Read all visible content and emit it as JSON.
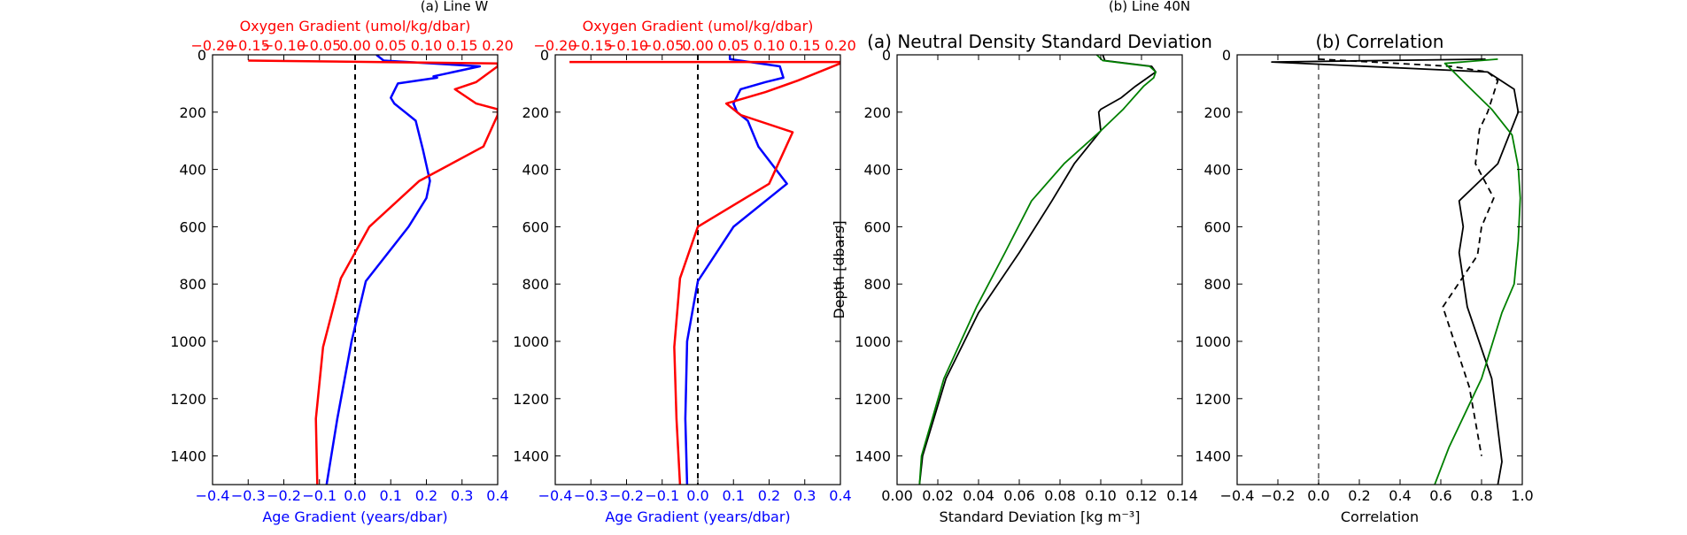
{
  "figure": {
    "suptitles": [
      "(a) Line W",
      "(b) Line 40N"
    ]
  },
  "chart_data": [
    {
      "type": "line",
      "panel": "Line W",
      "title": "",
      "xlabel": "Age Gradient (years/dbar)",
      "xlabel_color": "#0000ff",
      "xlim": [
        -0.4,
        0.4
      ],
      "xticks": [
        "−0.4",
        "−0.3",
        "−0.2",
        "−0.1",
        "0.0",
        "0.1",
        "0.2",
        "0.3",
        "0.4"
      ],
      "xticks_vals": [
        -0.4,
        -0.3,
        -0.2,
        -0.1,
        0.0,
        0.1,
        0.2,
        0.3,
        0.4
      ],
      "top_xlabel": "Oxygen Gradient (umol/kg/dbar)",
      "top_xlabel_color": "#ff0000",
      "top_xlim": [
        -0.2,
        0.2
      ],
      "top_xticks": [
        "−0.20",
        "−0.15",
        "−0.10",
        "−0.05",
        "0.00",
        "0.05",
        "0.10",
        "0.15",
        "0.20"
      ],
      "top_xticks_vals": [
        -0.2,
        -0.15,
        -0.1,
        -0.05,
        0.0,
        0.05,
        0.1,
        0.15,
        0.2
      ],
      "ylabel": "",
      "ylim": [
        0,
        1500
      ],
      "yticks": [
        "0",
        "200",
        "400",
        "600",
        "800",
        "1000",
        "1200",
        "1400"
      ],
      "yticks_vals": [
        0,
        200,
        400,
        600,
        800,
        1000,
        1200,
        1400
      ],
      "y_inverted": true,
      "series": [
        {
          "color": "#0000ff",
          "axis": "bottom",
          "x": [
            0.06,
            0.08,
            0.35,
            0.22,
            0.23,
            0.12,
            0.1,
            0.11,
            0.14,
            0.17,
            0.19,
            0.21,
            0.2,
            0.15,
            0.03,
            -0.01,
            -0.05,
            -0.08
          ],
          "y": [
            0,
            20,
            40,
            75,
            80,
            100,
            150,
            170,
            200,
            230,
            330,
            440,
            500,
            600,
            790,
            1000,
            1270,
            1500
          ]
        },
        {
          "color": "#ff0000",
          "axis": "top",
          "x": [
            -0.15,
            0.2,
            0.2,
            0.17,
            0.14,
            0.17,
            0.2,
            0.2,
            0.18,
            0.09,
            0.02,
            -0.02,
            -0.045,
            -0.055,
            -0.053
          ],
          "y": [
            20,
            30,
            40,
            95,
            120,
            170,
            190,
            210,
            320,
            440,
            600,
            780,
            1020,
            1270,
            1500
          ]
        }
      ],
      "reference_line": {
        "x": 0,
        "style": "dashed",
        "color": "#000000"
      }
    },
    {
      "type": "line",
      "panel": "Line 40N",
      "title": "",
      "xlabel": "Age Gradient (years/dbar)",
      "xlabel_color": "#0000ff",
      "xlim": [
        -0.4,
        0.4
      ],
      "xticks": [
        "−0.4",
        "−0.3",
        "−0.2",
        "−0.1",
        "0.0",
        "0.1",
        "0.2",
        "0.3",
        "0.4"
      ],
      "xticks_vals": [
        -0.4,
        -0.3,
        -0.2,
        -0.1,
        0.0,
        0.1,
        0.2,
        0.3,
        0.4
      ],
      "top_xlabel": "Oxygen Gradient (umol/kg/dbar)",
      "top_xlabel_color": "#ff0000",
      "top_xlim": [
        -0.2,
        0.2
      ],
      "top_xticks": [
        "−0.20",
        "−0.15",
        "−0.10",
        "−0.05",
        "0.00",
        "0.05",
        "0.10",
        "0.15",
        "0.20"
      ],
      "top_xticks_vals": [
        -0.2,
        -0.15,
        -0.1,
        -0.05,
        0.0,
        0.05,
        0.1,
        0.15,
        0.2
      ],
      "ylabel": "",
      "ylim": [
        0,
        1500
      ],
      "yticks": [
        "0",
        "200",
        "400",
        "600",
        "800",
        "1000",
        "1200",
        "1400"
      ],
      "yticks_vals": [
        0,
        200,
        400,
        600,
        800,
        1000,
        1200,
        1400
      ],
      "y_inverted": true,
      "series": [
        {
          "color": "#0000ff",
          "axis": "bottom",
          "x": [
            0.09,
            0.09,
            0.23,
            0.24,
            0.19,
            0.12,
            0.1,
            0.11,
            0.14,
            0.17,
            0.25,
            0.1,
            0.0,
            -0.03,
            -0.035,
            -0.03
          ],
          "y": [
            0,
            15,
            40,
            80,
            95,
            120,
            170,
            200,
            230,
            320,
            450,
            600,
            790,
            1000,
            1270,
            1500
          ]
        },
        {
          "color": "#ff0000",
          "axis": "top",
          "x": [
            -0.18,
            0.2,
            0.2,
            0.14,
            0.095,
            0.04,
            0.06,
            0.133,
            0.1,
            0.0,
            -0.025,
            -0.033,
            -0.03,
            -0.025
          ],
          "y": [
            25,
            25,
            30,
            90,
            130,
            170,
            210,
            270,
            450,
            600,
            780,
            1020,
            1270,
            1500
          ]
        }
      ],
      "reference_line": {
        "x": 0,
        "style": "dashed",
        "color": "#000000"
      }
    },
    {
      "type": "line",
      "panel": "(a)",
      "title": "(a) Neutral Density Standard Deviation",
      "xlabel": "Standard Deviation [kg m⁻³]",
      "xlim": [
        0.0,
        0.14
      ],
      "xticks": [
        "0.00",
        "0.02",
        "0.04",
        "0.06",
        "0.08",
        "0.10",
        "0.12",
        "0.14"
      ],
      "xticks_vals": [
        0.0,
        0.02,
        0.04,
        0.06,
        0.08,
        0.1,
        0.12,
        0.14
      ],
      "ylabel": "Depth [dbars]",
      "ylim": [
        0,
        1500
      ],
      "yticks": [
        "0",
        "200",
        "400",
        "600",
        "800",
        "1000",
        "1200",
        "1400"
      ],
      "yticks_vals": [
        0,
        200,
        400,
        600,
        800,
        1000,
        1200,
        1400
      ],
      "y_inverted": true,
      "series": [
        {
          "color": "#000000",
          "x": [
            0.101,
            0.102,
            0.125,
            0.127,
            0.123,
            0.117,
            0.11,
            0.1,
            0.099,
            0.1,
            0.087,
            0.076,
            0.06,
            0.04,
            0.024,
            0.0125,
            0.011
          ],
          "y": [
            0,
            20,
            40,
            60,
            80,
            110,
            150,
            190,
            200,
            265,
            380,
            510,
            690,
            900,
            1130,
            1400,
            1500
          ]
        },
        {
          "color": "#008000",
          "x": [
            0.098,
            0.101,
            0.124,
            0.127,
            0.126,
            0.121,
            0.111,
            0.1,
            0.082,
            0.066,
            0.053,
            0.039,
            0.023,
            0.012,
            0.011
          ],
          "y": [
            0,
            20,
            40,
            60,
            80,
            110,
            190,
            265,
            380,
            510,
            690,
            880,
            1130,
            1400,
            1500
          ]
        }
      ]
    },
    {
      "type": "line",
      "panel": "(b)",
      "title": "(b) Correlation",
      "xlabel": "Correlation",
      "xlim": [
        -0.4,
        1.0
      ],
      "xticks": [
        "−0.4",
        "−0.2",
        "0.0",
        "0.2",
        "0.4",
        "0.6",
        "0.8",
        "1.0"
      ],
      "xticks_vals": [
        -0.4,
        -0.2,
        0.0,
        0.2,
        0.4,
        0.6,
        0.8,
        1.0
      ],
      "ylabel": "",
      "ylim": [
        0,
        1500
      ],
      "yticks": [
        "0",
        "200",
        "400",
        "600",
        "800",
        "1000",
        "1200",
        "1400"
      ],
      "yticks_vals": [
        0,
        200,
        400,
        600,
        800,
        1000,
        1200,
        1400
      ],
      "y_inverted": true,
      "series": [
        {
          "color": "#000000",
          "style": "solid",
          "x": [
            0.82,
            -0.23,
            0.83,
            0.96,
            0.98,
            0.88,
            0.69,
            0.71,
            0.69,
            0.73,
            0.85,
            0.9,
            0.88
          ],
          "y": [
            15,
            25,
            60,
            120,
            200,
            380,
            510,
            600,
            690,
            880,
            1130,
            1420,
            1500
          ]
        },
        {
          "color": "#000000",
          "style": "dashed",
          "x": [
            0.0,
            0.65,
            0.83,
            0.88,
            0.83,
            0.79,
            0.77,
            0.86,
            0.8,
            0.78,
            0.61,
            0.74,
            0.8
          ],
          "y": [
            15,
            40,
            60,
            90,
            200,
            260,
            380,
            500,
            600,
            700,
            880,
            1160,
            1400
          ]
        },
        {
          "color": "#008000",
          "style": "solid",
          "x": [
            0.88,
            0.62,
            0.65,
            0.72,
            0.85,
            0.95,
            0.98,
            0.99,
            0.98,
            0.96,
            0.9,
            0.8,
            0.64,
            0.57
          ],
          "y": [
            15,
            30,
            50,
            100,
            190,
            280,
            390,
            500,
            650,
            800,
            900,
            1130,
            1370,
            1500
          ]
        }
      ],
      "reference_line": {
        "x": 0,
        "style": "dashed",
        "color": "#808080"
      }
    }
  ]
}
